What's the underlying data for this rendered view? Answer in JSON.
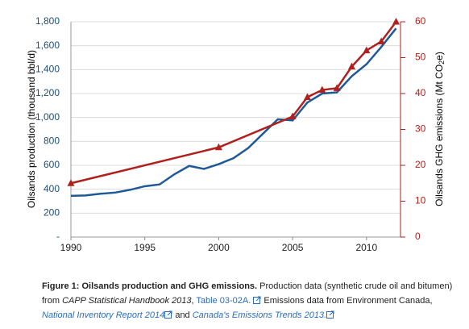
{
  "chart_data": {
    "type": "line",
    "x": [
      1990,
      1991,
      1992,
      1993,
      1994,
      1995,
      1996,
      1997,
      1998,
      1999,
      2000,
      2001,
      2002,
      2003,
      2004,
      2005,
      2006,
      2007,
      2008,
      2009,
      2010,
      2011,
      2012
    ],
    "xlim": [
      1990,
      2012.3
    ],
    "xticks": [
      1990,
      1995,
      2000,
      2005,
      2010
    ],
    "ylim": [
      0,
      1800
    ],
    "yticks": [
      {
        "value": 0,
        "label": "-"
      },
      200,
      400,
      600,
      800,
      {
        "value": 1000,
        "label": "1,000"
      },
      {
        "value": 1200,
        "label": "1,200"
      },
      {
        "value": 1400,
        "label": "1,400"
      },
      {
        "value": 1600,
        "label": "1,600"
      },
      {
        "value": 1800,
        "label": "1,800"
      }
    ],
    "y2lim": [
      0,
      60
    ],
    "y2ticks": [
      0,
      10,
      20,
      30,
      40,
      50,
      60
    ],
    "ylabel": "Oilsands production (thousand bbl/d)",
    "y2label": [
      "Oilsands GHG emissions (Mt CO",
      "2",
      "e)"
    ],
    "grid": true,
    "series": [
      {
        "color": "#1f5a96",
        "values": [
          345,
          348,
          362,
          372,
          395,
          425,
          440,
          525,
          595,
          570,
          610,
          660,
          745,
          865,
          985,
          975,
          1125,
          1200,
          1210,
          1345,
          1445,
          1590,
          1745
        ]
      },
      {
        "color": "#b0201c",
        "axis": "y2",
        "marker": "triangle",
        "x": [
          1990,
          2000,
          2005,
          2006,
          2007,
          2008,
          2009,
          2010,
          2011,
          2012
        ],
        "values": [
          15,
          25,
          33.6,
          39,
          41,
          41.5,
          47.5,
          52,
          54.5,
          60
        ]
      }
    ]
  },
  "caption": {
    "label": "Figure 1: Oilsands production and GHG emissions.",
    "text1": " Production data (synthetic crude oil and bitumen) from ",
    "source1": "CAPP Statistical Handbook 2013",
    "sep": ", ",
    "link1": "Table 03-02A.",
    "text2": " Emissions data from Environment Canada, ",
    "link2": "National Inventory Report 2014",
    "text3": " and ",
    "link3": "Canada's Emissions Trends 2013."
  }
}
